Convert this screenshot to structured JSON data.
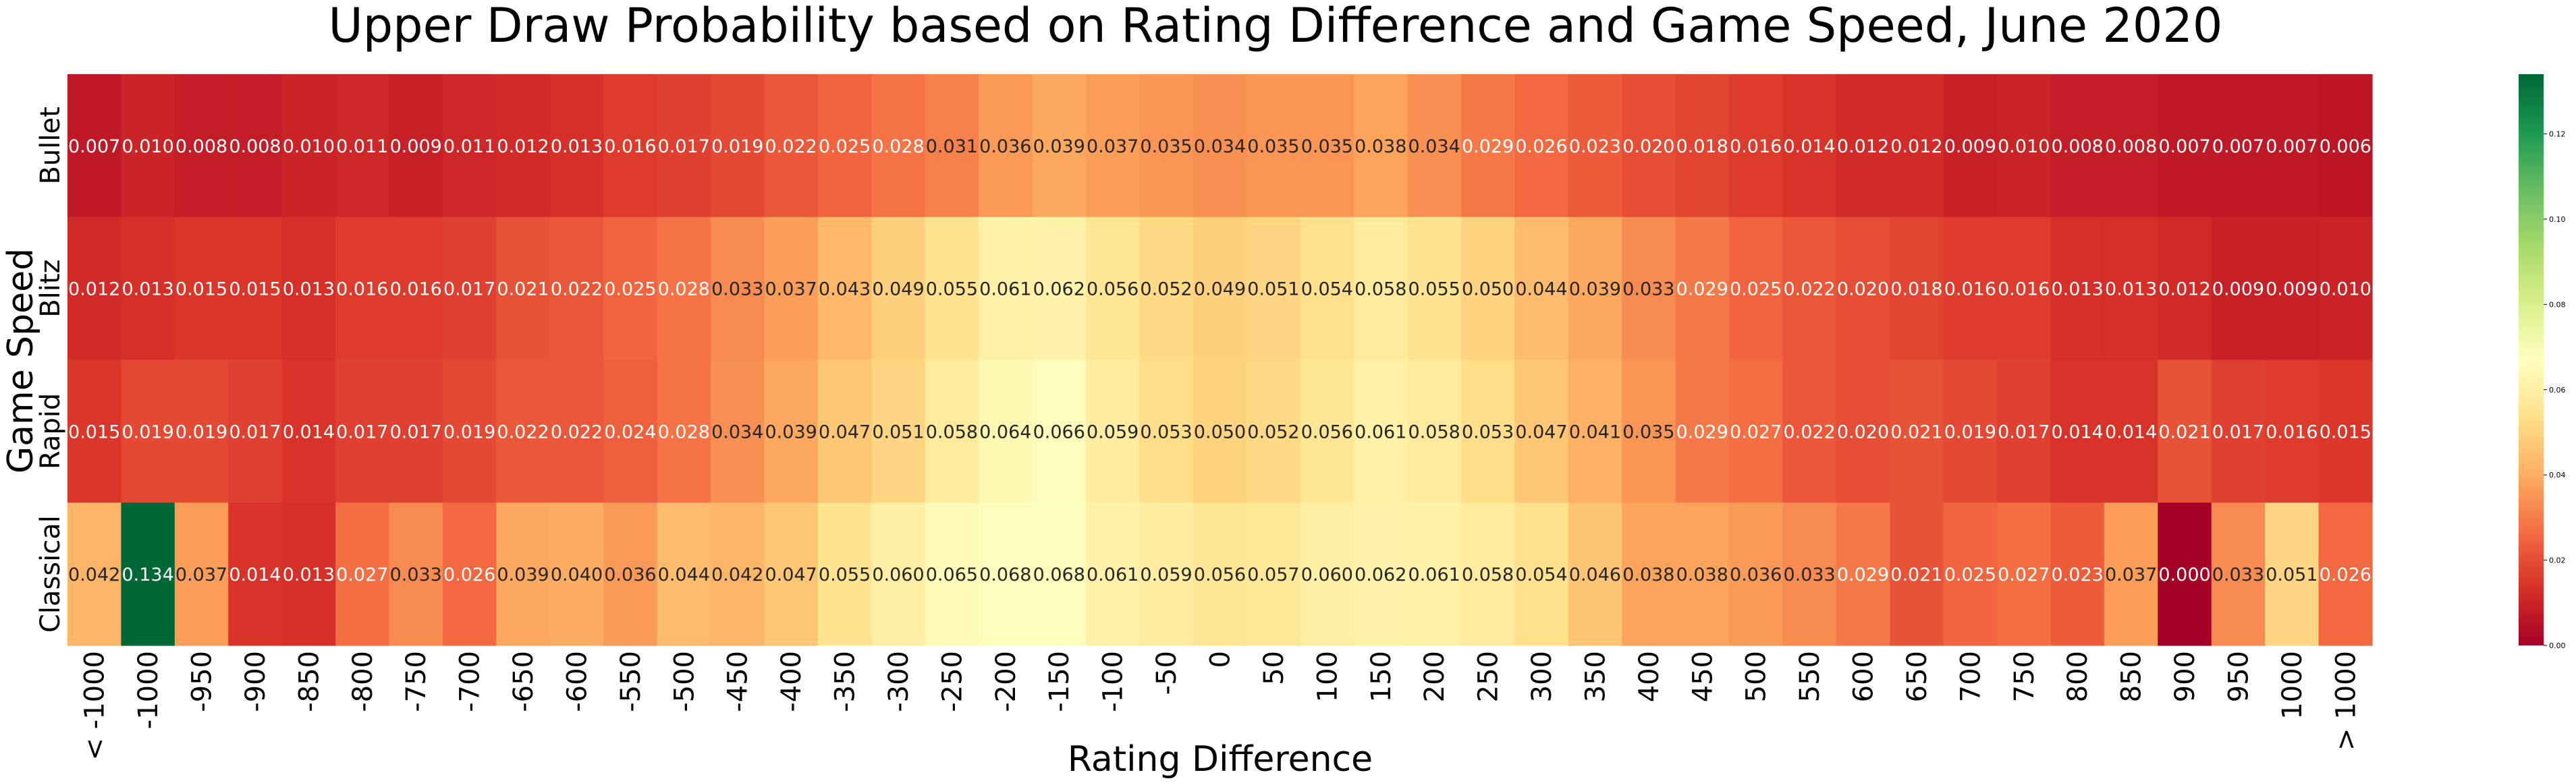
{
  "chart_data": {
    "type": "heatmap",
    "title": "Upper Draw Probability based on Rating Difference and Game Speed, June 2020",
    "xlabel": "Rating Difference",
    "ylabel": "Game Speed",
    "x": [
      "< -1000",
      "-1000",
      "-950",
      "-900",
      "-850",
      "-800",
      "-750",
      "-700",
      "-650",
      "-600",
      "-550",
      "-500",
      "-450",
      "-400",
      "-350",
      "-300",
      "-250",
      "-200",
      "-150",
      "-100",
      "-50",
      "0",
      "50",
      "100",
      "150",
      "200",
      "250",
      "300",
      "350",
      "400",
      "450",
      "500",
      "550",
      "600",
      "650",
      "700",
      "750",
      "800",
      "850",
      "900",
      "950",
      "1000",
      "> 1000"
    ],
    "y": [
      "Bullet",
      "Blitz",
      "Rapid",
      "Classical"
    ],
    "values": [
      [
        0.007,
        0.01,
        0.008,
        0.008,
        0.01,
        0.011,
        0.009,
        0.011,
        0.012,
        0.013,
        0.016,
        0.017,
        0.019,
        0.022,
        0.025,
        0.028,
        0.031,
        0.036,
        0.039,
        0.037,
        0.035,
        0.034,
        0.035,
        0.035,
        0.038,
        0.034,
        0.029,
        0.026,
        0.023,
        0.02,
        0.018,
        0.016,
        0.014,
        0.012,
        0.012,
        0.009,
        0.01,
        0.008,
        0.008,
        0.007,
        0.007,
        0.007,
        0.006
      ],
      [
        0.012,
        0.013,
        0.015,
        0.015,
        0.013,
        0.016,
        0.016,
        0.017,
        0.021,
        0.022,
        0.025,
        0.028,
        0.033,
        0.037,
        0.043,
        0.049,
        0.055,
        0.061,
        0.062,
        0.056,
        0.052,
        0.049,
        0.051,
        0.054,
        0.058,
        0.055,
        0.05,
        0.044,
        0.039,
        0.033,
        0.029,
        0.025,
        0.022,
        0.02,
        0.018,
        0.016,
        0.016,
        0.013,
        0.013,
        0.012,
        0.009,
        0.009,
        0.01
      ],
      [
        0.015,
        0.019,
        0.019,
        0.017,
        0.014,
        0.017,
        0.017,
        0.019,
        0.022,
        0.022,
        0.024,
        0.028,
        0.034,
        0.039,
        0.047,
        0.051,
        0.058,
        0.064,
        0.066,
        0.059,
        0.053,
        0.05,
        0.052,
        0.056,
        0.061,
        0.058,
        0.053,
        0.047,
        0.041,
        0.035,
        0.029,
        0.027,
        0.022,
        0.02,
        0.021,
        0.019,
        0.017,
        0.014,
        0.014,
        0.021,
        0.017,
        0.016,
        0.015
      ],
      [
        0.042,
        0.134,
        0.037,
        0.014,
        0.013,
        0.027,
        0.033,
        0.026,
        0.039,
        0.04,
        0.036,
        0.044,
        0.042,
        0.047,
        0.055,
        0.06,
        0.065,
        0.068,
        0.068,
        0.061,
        0.059,
        0.056,
        0.057,
        0.06,
        0.062,
        0.061,
        0.058,
        0.054,
        0.046,
        0.038,
        0.038,
        0.036,
        0.033,
        0.029,
        0.021,
        0.025,
        0.027,
        0.023,
        0.037,
        0.0,
        0.033,
        0.051,
        0.026
      ]
    ],
    "value_format": "3 decimals",
    "colormap": "RdYlGn",
    "vmin": 0.0,
    "vmax": 0.134,
    "colorbar_ticks": [
      "0.00",
      "0.02",
      "0.04",
      "0.06",
      "0.08",
      "0.10",
      "0.12"
    ],
    "colorbar_tick_values": [
      0.0,
      0.02,
      0.04,
      0.06,
      0.08,
      0.1,
      0.12
    ],
    "grid": false,
    "legend": "colorbar-right",
    "colors": {
      "background": "#ffffff",
      "text_dark": "#262626",
      "text_light": "#ffffff"
    }
  }
}
